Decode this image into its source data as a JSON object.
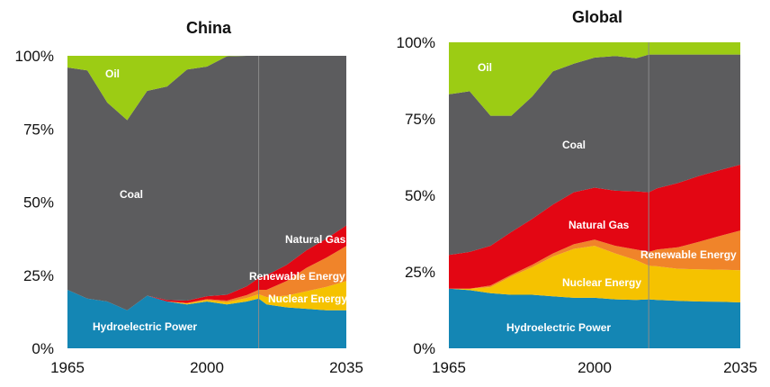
{
  "chart_data": [
    {
      "type": "area",
      "stacked": true,
      "title": "China",
      "xlabel": "",
      "ylabel": "",
      "xlim": [
        1965,
        2035
      ],
      "ylim": [
        0,
        100
      ],
      "x_ticks": [
        "1965",
        "2000",
        "2035"
      ],
      "y_ticks": [
        "0%",
        "25%",
        "50%",
        "75%",
        "100%"
      ],
      "grid": false,
      "forecast_divider_x": 2013,
      "x": [
        1965,
        1970,
        1975,
        1980,
        1985,
        1990,
        1995,
        2000,
        2005,
        2010,
        2013,
        2015,
        2020,
        2025,
        2030,
        2035
      ],
      "series": [
        {
          "name": "Hydroelectric Power",
          "color": "#1486b4",
          "values": [
            20,
            17,
            16,
            13,
            18,
            16,
            15,
            16,
            15,
            16,
            17,
            15,
            14,
            13.5,
            13,
            13
          ]
        },
        {
          "name": "Nuclear Energy",
          "color": "#f5c200",
          "values": [
            0,
            0,
            0,
            0,
            0,
            0,
            0.3,
            0.5,
            0.8,
            1.2,
            1.5,
            2.5,
            4,
            6,
            8,
            10
          ]
        },
        {
          "name": "Renewable Energy",
          "color": "#f0842a",
          "values": [
            0,
            0,
            0,
            0,
            0,
            0,
            0.2,
            0.3,
            0.5,
            1,
            1.5,
            2.5,
            5,
            8,
            10,
            12
          ]
        },
        {
          "name": "Natural Gas",
          "color": "#e30613",
          "values": [
            0,
            0,
            0,
            0,
            0,
            0.5,
            0.8,
            1,
            2,
            3,
            4,
            5,
            5.5,
            6,
            6.5,
            7
          ]
        },
        {
          "name": "Coal",
          "color": "#5c5c5e",
          "values": [
            76,
            78,
            68,
            65,
            70,
            73,
            79,
            78.5,
            81.5,
            78.8,
            76,
            75,
            71.5,
            66.5,
            62.5,
            58
          ]
        },
        {
          "name": "Oil",
          "color": "#9ccc14",
          "values": [
            4,
            5,
            16,
            22,
            12,
            10.5,
            4.7,
            3.7,
            0.2,
            0,
            0,
            0,
            0,
            0,
            0,
            0
          ]
        }
      ]
    },
    {
      "type": "area",
      "stacked": true,
      "title": "Global",
      "xlabel": "",
      "ylabel": "",
      "xlim": [
        1965,
        2035
      ],
      "ylim": [
        0,
        100
      ],
      "x_ticks": [
        "1965",
        "2000",
        "2035"
      ],
      "y_ticks": [
        "0%",
        "25%",
        "50%",
        "75%",
        "100%"
      ],
      "grid": false,
      "forecast_divider_x": 2013,
      "x": [
        1965,
        1970,
        1975,
        1980,
        1985,
        1990,
        1995,
        2000,
        2005,
        2010,
        2013,
        2015,
        2020,
        2025,
        2030,
        2035
      ],
      "series": [
        {
          "name": "Hydroelectric Power",
          "color": "#1486b4",
          "values": [
            19.5,
            19,
            18,
            17.5,
            17.5,
            17,
            16.5,
            16.5,
            16,
            15.8,
            16,
            15.8,
            15.5,
            15.3,
            15.2,
            15
          ]
        },
        {
          "name": "Nuclear Energy",
          "color": "#f5c200",
          "values": [
            0,
            0.5,
            2,
            6,
            9,
            13,
            16,
            17,
            15,
            13,
            11,
            11,
            10.5,
            10.5,
            10.5,
            10.5
          ]
        },
        {
          "name": "Renewable Energy",
          "color": "#f0842a",
          "values": [
            0,
            0,
            0.5,
            0.5,
            0.8,
            1,
            1.5,
            2,
            2.5,
            3.5,
            4.5,
            5.5,
            7,
            9,
            11,
            13
          ]
        },
        {
          "name": "Natural Gas",
          "color": "#e30613",
          "values": [
            11,
            12,
            13,
            14,
            15,
            16,
            17,
            17,
            18,
            19,
            19.5,
            20,
            21,
            21.5,
            21.5,
            21.5
          ]
        },
        {
          "name": "Coal",
          "color": "#5c5c5e",
          "values": [
            52.5,
            52.5,
            42.5,
            38,
            40,
            43.5,
            42,
            42.5,
            44,
            43.5,
            45,
            43.7,
            42,
            39.7,
            37.8,
            36
          ]
        },
        {
          "name": "Oil",
          "color": "#9ccc14",
          "values": [
            17,
            16,
            24,
            24,
            17.7,
            9.5,
            7,
            5,
            4.5,
            5.2,
            4,
            4,
            4,
            4,
            4,
            4
          ]
        }
      ]
    }
  ]
}
